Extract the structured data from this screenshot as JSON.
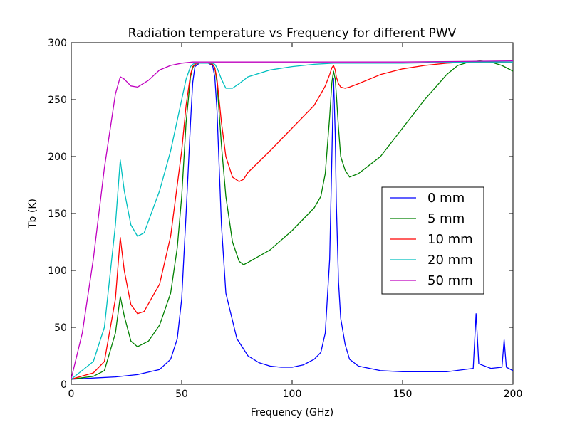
{
  "chart_data": {
    "type": "line",
    "title": "Radiation temperature vs Frequency for different PWV",
    "xlabel": "Frequency (GHz)",
    "ylabel": "Tb (K)",
    "xlim": [
      0,
      200
    ],
    "ylim": [
      0,
      300
    ],
    "xticks": [
      "0",
      "50",
      "100",
      "150",
      "200"
    ],
    "yticks": [
      "0",
      "50",
      "100",
      "150",
      "200",
      "250",
      "300"
    ],
    "grid": false,
    "legend_position": "center-right",
    "series": [
      {
        "name": "0 mm",
        "color": "#0000ff",
        "x": [
          0,
          10,
          20,
          30,
          40,
          45,
          48,
          50,
          52,
          54,
          55,
          56,
          58,
          60,
          62,
          64,
          65,
          66,
          68,
          70,
          75,
          80,
          85,
          90,
          95,
          100,
          105,
          110,
          113,
          115,
          117,
          118,
          118.75,
          119.5,
          120,
          121,
          122,
          124,
          126,
          130,
          140,
          150,
          160,
          170,
          182,
          183.3,
          184.5,
          190,
          195,
          196,
          197,
          200
        ],
        "y": [
          4.5,
          5.5,
          6.5,
          8.5,
          13,
          22,
          40,
          75,
          150,
          230,
          265,
          279,
          282,
          282,
          282,
          280,
          270,
          240,
          140,
          80,
          40,
          25,
          19,
          16,
          15,
          15,
          17,
          22,
          28,
          45,
          110,
          200,
          269,
          220,
          160,
          90,
          58,
          35,
          22,
          16,
          12,
          11,
          11,
          11,
          14,
          62,
          18,
          14,
          15,
          39,
          15,
          12
        ]
      },
      {
        "name": "5 mm",
        "color": "#008000",
        "x": [
          0,
          10,
          15,
          20,
          22.2,
          24,
          27,
          30,
          35,
          40,
          45,
          48,
          50,
          52,
          54,
          55,
          56,
          58,
          60,
          62,
          64,
          65,
          66,
          68,
          70,
          73,
          76,
          78,
          80,
          90,
          100,
          110,
          113,
          115,
          117,
          118,
          118.75,
          119.5,
          120,
          121,
          122,
          124,
          126,
          130,
          140,
          150,
          160,
          170,
          175,
          180,
          185,
          190,
          195,
          200
        ],
        "y": [
          4.5,
          7,
          12,
          45,
          77,
          60,
          38,
          33,
          38,
          52,
          80,
          120,
          165,
          230,
          270,
          278,
          281,
          282,
          282,
          282,
          281,
          278,
          265,
          210,
          165,
          125,
          108,
          105,
          107,
          118,
          135,
          155,
          165,
          185,
          235,
          265,
          275,
          268,
          255,
          225,
          200,
          188,
          182,
          185,
          200,
          225,
          250,
          272,
          280,
          283,
          284,
          283,
          280,
          275
        ]
      },
      {
        "name": "10 mm",
        "color": "#ff0000",
        "x": [
          0,
          10,
          15,
          20,
          22.2,
          24,
          27,
          30,
          33,
          40,
          45,
          50,
          52,
          54,
          55,
          56,
          58,
          60,
          62,
          64,
          65,
          66,
          68,
          70,
          73,
          76,
          78,
          80,
          90,
          100,
          110,
          113,
          115,
          117,
          118,
          118.75,
          119.5,
          120,
          121,
          122,
          124,
          126,
          130,
          140,
          150,
          160,
          170,
          180,
          185,
          190,
          200
        ],
        "y": [
          4.5,
          10,
          20,
          75,
          129,
          100,
          70,
          62,
          64,
          88,
          130,
          205,
          245,
          272,
          279,
          281,
          282,
          282,
          282,
          281,
          278,
          268,
          230,
          200,
          182,
          178,
          180,
          186,
          205,
          225,
          245,
          255,
          262,
          272,
          278,
          280,
          276,
          270,
          264,
          261,
          260,
          261,
          264,
          272,
          277,
          280,
          282,
          283,
          283,
          283,
          283
        ]
      },
      {
        "name": "20 mm",
        "color": "#00bfbf",
        "x": [
          0,
          10,
          15,
          20,
          22.2,
          24,
          27,
          30,
          33,
          40,
          45,
          50,
          52,
          54,
          55,
          56,
          58,
          60,
          62,
          64,
          65,
          66,
          68,
          70,
          73,
          76,
          80,
          90,
          100,
          110,
          118.75,
          130,
          150,
          180,
          200
        ],
        "y": [
          4.5,
          20,
          50,
          140,
          197,
          170,
          140,
          130,
          133,
          170,
          205,
          250,
          268,
          279,
          281,
          282,
          282,
          282,
          282,
          282,
          281,
          278,
          268,
          260,
          260,
          264,
          270,
          276,
          279,
          281,
          282,
          282,
          282,
          283,
          283
        ]
      },
      {
        "name": "50 mm",
        "color": "#bf00bf",
        "x": [
          0,
          5,
          10,
          15,
          20,
          22.2,
          24,
          27,
          30,
          35,
          40,
          45,
          50,
          55,
          60,
          70,
          100,
          150,
          200
        ],
        "y": [
          5,
          45,
          110,
          190,
          255,
          270,
          268,
          262,
          261,
          267,
          276,
          280,
          282,
          283,
          283,
          283,
          283,
          283,
          284
        ]
      }
    ]
  }
}
